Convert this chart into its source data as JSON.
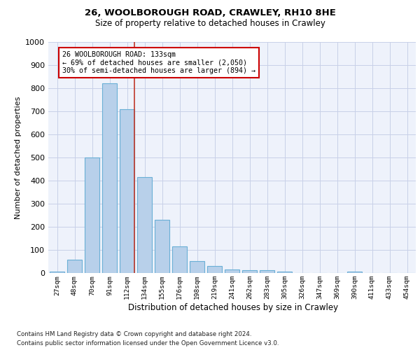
{
  "title_line1": "26, WOOLBOROUGH ROAD, CRAWLEY, RH10 8HE",
  "title_line2": "Size of property relative to detached houses in Crawley",
  "xlabel": "Distribution of detached houses by size in Crawley",
  "ylabel": "Number of detached properties",
  "bar_values": [
    5,
    57,
    500,
    820,
    710,
    415,
    230,
    115,
    53,
    30,
    15,
    12,
    12,
    7,
    0,
    0,
    0,
    7,
    0,
    0,
    0
  ],
  "bar_labels": [
    "27sqm",
    "48sqm",
    "70sqm",
    "91sqm",
    "112sqm",
    "134sqm",
    "155sqm",
    "176sqm",
    "198sqm",
    "219sqm",
    "241sqm",
    "262sqm",
    "283sqm",
    "305sqm",
    "326sqm",
    "347sqm",
    "369sqm",
    "390sqm",
    "411sqm",
    "433sqm",
    "454sqm"
  ],
  "bar_color": "#b8d0ea",
  "bar_edge_color": "#6aafd6",
  "vline_color": "#c0392b",
  "vline_index": 4.5,
  "annotation_text": "26 WOOLBOROUGH ROAD: 133sqm\n← 69% of detached houses are smaller (2,050)\n30% of semi-detached houses are larger (894) →",
  "annotation_box_color": "white",
  "annotation_box_edge_color": "#cc0000",
  "ylim": [
    0,
    1000
  ],
  "yticks": [
    0,
    100,
    200,
    300,
    400,
    500,
    600,
    700,
    800,
    900,
    1000
  ],
  "footer_line1": "Contains HM Land Registry data © Crown copyright and database right 2024.",
  "footer_line2": "Contains public sector information licensed under the Open Government Licence v3.0.",
  "background_color": "#eef2fb",
  "grid_color": "#c8d0e8"
}
